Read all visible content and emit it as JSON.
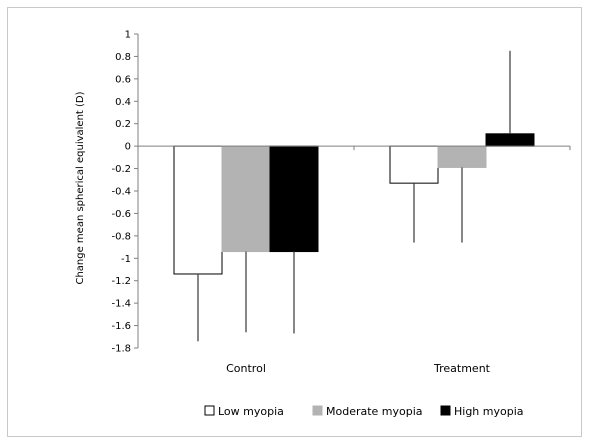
{
  "chart_data": {
    "type": "bar",
    "categories": [
      "Control",
      "Treatment"
    ],
    "series": [
      {
        "name": "Low myopia",
        "values": [
          -1.14,
          -0.33
        ],
        "error": [
          0.6,
          0.53
        ],
        "error_dir": [
          "down",
          "down"
        ],
        "fill": "#ffffff",
        "stroke": "#000000"
      },
      {
        "name": "Moderate myopia",
        "values": [
          -0.94,
          -0.19
        ],
        "error": [
          0.72,
          0.67
        ],
        "error_dir": [
          "down",
          "down"
        ],
        "fill": "#b3b3b3",
        "stroke": "#b3b3b3"
      },
      {
        "name": "High myopia",
        "values": [
          -0.94,
          0.11
        ],
        "error": [
          0.73,
          0.74
        ],
        "error_dir": [
          "down",
          "up"
        ],
        "fill": "#000000",
        "stroke": "#000000"
      }
    ],
    "yticks": [
      "1",
      "0.8",
      "0.6",
      "0.4",
      "0.2",
      "0",
      "-0.2",
      "-0.4",
      "-0.6",
      "-0.8",
      "-1",
      "-1.2",
      "-1.4",
      "-1.6",
      "-1.8"
    ],
    "ylim": [
      -1.8,
      1
    ],
    "ylabel": "Change mean spherical equivalent (D)",
    "xlabel": "",
    "title": "",
    "legend_position": "bottom",
    "grid": false
  }
}
